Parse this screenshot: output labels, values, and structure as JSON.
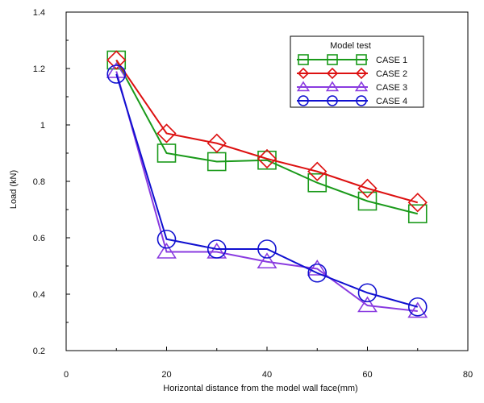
{
  "chart_data": {
    "type": "line",
    "title": "",
    "xlabel": "Horizontal distance from the model wall face(mm)",
    "ylabel": "Load (kN)",
    "xlim": [
      0,
      80
    ],
    "ylim": [
      0.2,
      1.4
    ],
    "xticks": [
      0,
      20,
      40,
      60,
      80
    ],
    "yticks": [
      0.2,
      0.4,
      0.6,
      0.8,
      1,
      1.2,
      1.4
    ],
    "grid": false,
    "legend": {
      "title": "Model test",
      "position": "top-right"
    },
    "series": [
      {
        "name": "CASE 1",
        "color": "#1a9a1a",
        "marker": "square",
        "points": [
          [
            10,
            1.23
          ],
          [
            20,
            0.9
          ],
          [
            30,
            0.87
          ],
          [
            40,
            0.875
          ],
          [
            50,
            0.795
          ],
          [
            60,
            0.73
          ],
          [
            70,
            0.685
          ]
        ]
      },
      {
        "name": "CASE 2",
        "color": "#dd1111",
        "marker": "diamond",
        "points": [
          [
            10,
            1.23
          ],
          [
            20,
            0.97
          ],
          [
            30,
            0.935
          ],
          [
            40,
            0.88
          ],
          [
            50,
            0.835
          ],
          [
            60,
            0.775
          ],
          [
            70,
            0.725
          ]
        ]
      },
      {
        "name": "CASE 3",
        "color": "#8a3be0",
        "marker": "triangle",
        "points": [
          [
            10,
            1.19
          ],
          [
            20,
            0.55
          ],
          [
            30,
            0.55
          ],
          [
            40,
            0.515
          ],
          [
            50,
            0.49
          ],
          [
            60,
            0.36
          ],
          [
            70,
            0.34
          ]
        ]
      },
      {
        "name": "CASE 4",
        "color": "#1010d0",
        "marker": "circle",
        "points": [
          [
            10,
            1.18
          ],
          [
            20,
            0.595
          ],
          [
            30,
            0.56
          ],
          [
            40,
            0.56
          ],
          [
            50,
            0.475
          ],
          [
            60,
            0.405
          ],
          [
            70,
            0.355
          ]
        ]
      }
    ]
  }
}
